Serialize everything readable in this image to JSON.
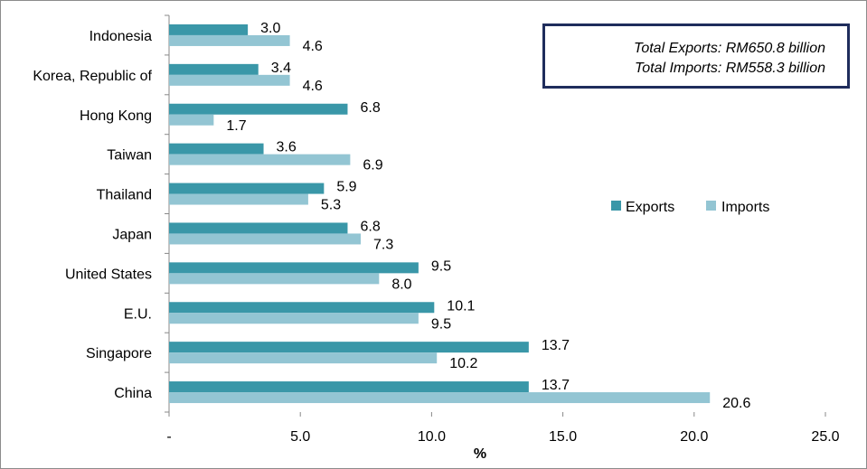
{
  "colors": {
    "exports": "#3a97a8",
    "imports": "#93c5d3",
    "axis": "#888888",
    "box_border": "#1f2d5c"
  },
  "totals": {
    "exports": "Total Exports: RM650.8 billion",
    "imports": "Total Imports: RM558.3 billion"
  },
  "chart_data": {
    "type": "bar",
    "orientation": "horizontal",
    "categories": [
      "Indonesia",
      "Korea, Republic of",
      "Hong Kong",
      "Taiwan",
      "Thailand",
      "Japan",
      "United States",
      "E.U.",
      "Singapore",
      "China"
    ],
    "series": [
      {
        "name": "Exports",
        "values": [
          3.0,
          3.4,
          6.8,
          3.6,
          5.9,
          6.8,
          9.5,
          10.1,
          13.7,
          13.7
        ],
        "labels": [
          "3.0",
          "3.4",
          "6.8",
          "3.6",
          "5.9",
          "6.8",
          "9.5",
          "10.1",
          "13.7",
          "13.7"
        ]
      },
      {
        "name": "Imports",
        "values": [
          4.6,
          4.6,
          1.7,
          6.9,
          5.3,
          7.3,
          8.0,
          9.5,
          10.2,
          20.6
        ],
        "labels": [
          "4.6",
          "4.6",
          "1.7",
          "6.9",
          "5.3",
          "7.3",
          "8.0",
          "9.5",
          "10.2",
          "20.6"
        ]
      }
    ],
    "xlabel": "%",
    "xlim": [
      0,
      25
    ],
    "xticks": [
      0,
      5,
      10,
      15,
      20,
      25
    ],
    "xtick_labels": [
      "-",
      "5.0",
      "10.0",
      "15.0",
      "20.0",
      "25.0"
    ],
    "grid": false,
    "legend_position": "right"
  }
}
